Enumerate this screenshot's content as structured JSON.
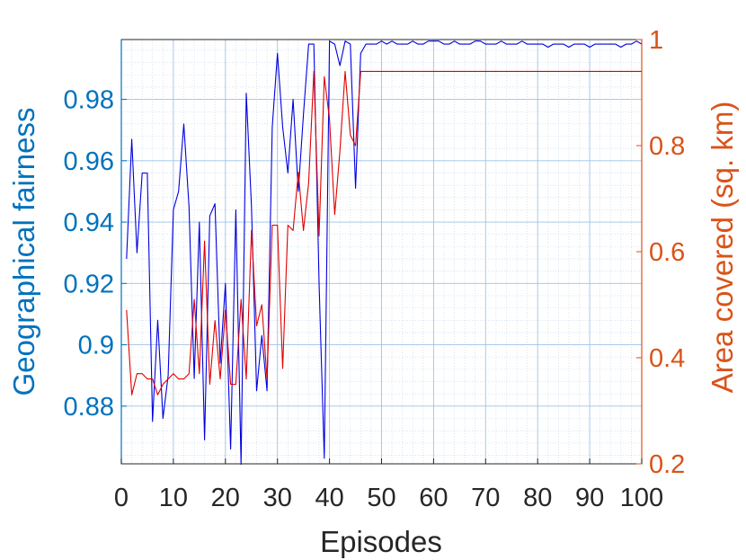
{
  "chart_data": {
    "type": "line",
    "title": "",
    "xlabel": "Episodes",
    "ylabel_left": "Geographical fairness",
    "ylabel_right": "Area covered (sq. km)",
    "xlim": [
      0,
      100
    ],
    "ylim_left": [
      0.8612,
      0.9995
    ],
    "ylim_right": [
      0.2,
      1.0
    ],
    "grid": true,
    "minor_grid": true,
    "legend": "none",
    "colors": {
      "left_axis": "#0072BD",
      "right_axis": "#D95319",
      "series_fairness": "#0000E0",
      "series_area": "#E00000",
      "grid": "#9DC3E6"
    },
    "x_ticks": [
      "0",
      "10",
      "20",
      "30",
      "40",
      "50",
      "60",
      "70",
      "80",
      "90",
      "100"
    ],
    "x_tick_values": [
      0,
      10,
      20,
      30,
      40,
      50,
      60,
      70,
      80,
      90,
      100
    ],
    "y_left_ticks": [
      "0.88",
      "0.9",
      "0.92",
      "0.94",
      "0.96",
      "0.98"
    ],
    "y_left_tick_values": [
      0.88,
      0.9,
      0.92,
      0.94,
      0.96,
      0.98
    ],
    "y_right_ticks": [
      "0.2",
      "0.4",
      "0.6",
      "0.8",
      "1"
    ],
    "y_right_tick_values": [
      0.2,
      0.4,
      0.6,
      0.8,
      1.0
    ],
    "x": [
      1,
      2,
      3,
      4,
      5,
      6,
      7,
      8,
      9,
      10,
      11,
      12,
      13,
      14,
      15,
      16,
      17,
      18,
      19,
      20,
      21,
      22,
      23,
      24,
      25,
      26,
      27,
      28,
      29,
      30,
      31,
      32,
      33,
      34,
      35,
      36,
      37,
      38,
      39,
      40,
      41,
      42,
      43,
      44,
      45,
      46,
      47,
      48,
      49,
      50,
      51,
      52,
      53,
      54,
      55,
      56,
      57,
      58,
      59,
      60,
      61,
      62,
      63,
      64,
      65,
      66,
      67,
      68,
      69,
      70,
      71,
      72,
      73,
      74,
      75,
      76,
      77,
      78,
      79,
      80,
      81,
      82,
      83,
      84,
      85,
      86,
      87,
      88,
      89,
      90,
      91,
      92,
      93,
      94,
      95,
      96,
      97,
      98,
      99,
      100
    ],
    "series": [
      {
        "name": "Geographical fairness",
        "axis": "left",
        "values": [
          0.928,
          0.967,
          0.93,
          0.956,
          0.956,
          0.875,
          0.908,
          0.876,
          0.89,
          0.944,
          0.95,
          0.972,
          0.945,
          0.889,
          0.94,
          0.869,
          0.942,
          0.946,
          0.894,
          0.92,
          0.866,
          0.944,
          0.861,
          0.982,
          0.945,
          0.885,
          0.903,
          0.885,
          0.971,
          0.995,
          0.971,
          0.956,
          0.98,
          0.95,
          0.975,
          0.998,
          0.998,
          0.92,
          0.863,
          0.999,
          0.998,
          0.991,
          0.999,
          0.998,
          0.951,
          0.995,
          0.998,
          0.998,
          0.998,
          0.999,
          0.998,
          0.999,
          0.998,
          0.998,
          0.998,
          0.999,
          0.998,
          0.998,
          0.999,
          0.999,
          0.999,
          0.998,
          0.998,
          0.999,
          0.998,
          0.998,
          0.998,
          0.999,
          0.999,
          0.998,
          0.998,
          0.998,
          0.999,
          0.998,
          0.998,
          0.998,
          0.999,
          0.998,
          0.998,
          0.998,
          0.998,
          0.997,
          0.998,
          0.998,
          0.998,
          0.997,
          0.998,
          0.998,
          0.998,
          0.997,
          0.998,
          0.998,
          0.998,
          0.998,
          0.998,
          0.997,
          0.998,
          0.998,
          0.999,
          0.998
        ]
      },
      {
        "name": "Area covered (sq. km)",
        "axis": "right",
        "values": [
          0.49,
          0.33,
          0.37,
          0.37,
          0.36,
          0.36,
          0.33,
          0.35,
          0.36,
          0.37,
          0.36,
          0.36,
          0.37,
          0.51,
          0.37,
          0.62,
          0.35,
          0.47,
          0.36,
          0.49,
          0.35,
          0.35,
          0.51,
          0.36,
          0.64,
          0.46,
          0.5,
          0.36,
          0.65,
          0.65,
          0.38,
          0.65,
          0.64,
          0.75,
          0.64,
          0.73,
          0.94,
          0.63,
          0.93,
          0.85,
          0.67,
          0.79,
          0.94,
          0.82,
          0.8,
          0.94,
          0.94,
          0.94,
          0.94,
          0.94,
          0.94,
          0.94,
          0.94,
          0.94,
          0.94,
          0.94,
          0.94,
          0.94,
          0.94,
          0.94,
          0.94,
          0.94,
          0.94,
          0.94,
          0.94,
          0.94,
          0.94,
          0.94,
          0.94,
          0.94,
          0.94,
          0.94,
          0.94,
          0.94,
          0.94,
          0.94,
          0.94,
          0.94,
          0.94,
          0.94,
          0.94,
          0.94,
          0.94,
          0.94,
          0.94,
          0.94,
          0.94,
          0.94,
          0.94,
          0.94,
          0.94,
          0.94,
          0.94,
          0.94,
          0.94,
          0.94,
          0.94,
          0.94,
          0.94,
          0.94
        ]
      }
    ]
  }
}
